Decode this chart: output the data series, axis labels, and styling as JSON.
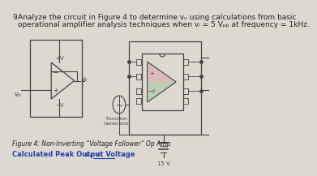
{
  "title_number": "9.",
  "title_text1": "Analyze the circuit in Figure 4 to determine vₒ using calculations from basic",
  "title_text2": "operational amplifier analysis techniques when vᵢ = 5 Vₚₚ at frequency = 1kHz.",
  "figure_caption": "Figure 4: Non-Inverting “Voltage Follower” Op Amp",
  "calc_label": "Calculated Peak Output Voltage",
  "calc_suffix": " vₒ =",
  "bg_color": "#ddd8d2",
  "text_color": "#222222",
  "blue_color": "#2244aa",
  "line_color": "#444444",
  "green_fill": "#a8c8a0",
  "red_fill": "#d09090",
  "pink_fill": "#d8a0a0"
}
